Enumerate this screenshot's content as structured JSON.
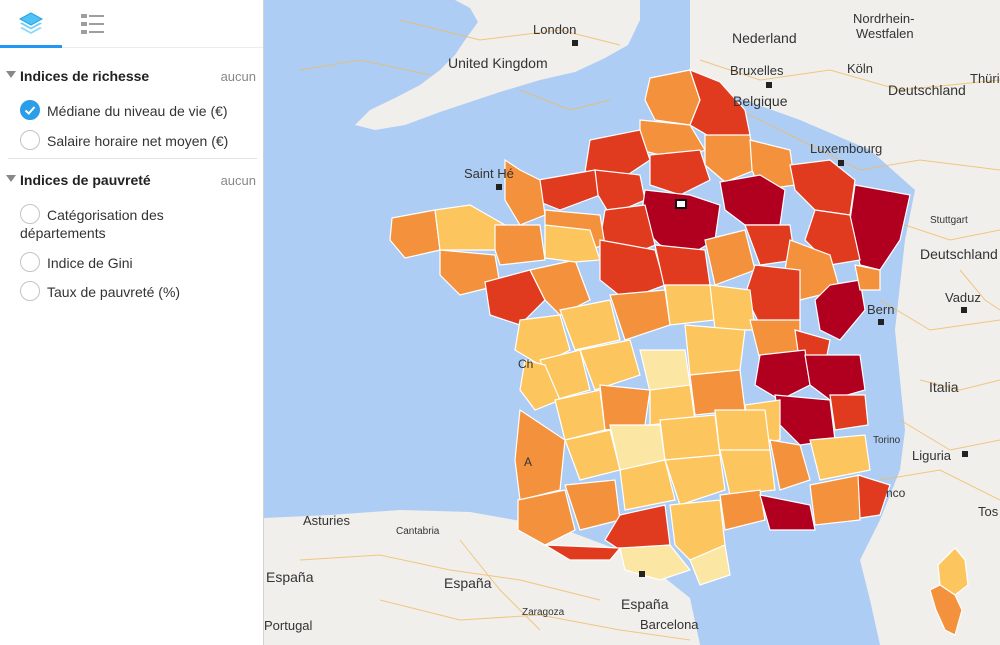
{
  "sidebar": {
    "tabs": [
      {
        "name": "layers",
        "icon": "layers-icon",
        "active": true
      },
      {
        "name": "legend",
        "icon": "legend-list-icon",
        "active": false
      }
    ],
    "sections": [
      {
        "title": "Indices de richesse",
        "none_label": "aucun",
        "items": [
          {
            "label": "Médiane du niveau de vie (€)",
            "checked": true
          },
          {
            "label": "Salaire horaire net moyen (€)",
            "checked": false
          }
        ]
      },
      {
        "title": "Indices de pauvreté",
        "none_label": "aucun",
        "items": [
          {
            "label": "Catégorisation des départements",
            "checked": false
          },
          {
            "label": "Indice de Gini",
            "checked": false
          },
          {
            "label": "Taux de pauvreté (%)",
            "checked": false
          }
        ]
      }
    ]
  },
  "map": {
    "colors": {
      "sea": "#aecdf4",
      "land": "#f1efec",
      "roads": "#f2b85a",
      "level1": "#fbe6a4",
      "level2": "#fcc55e",
      "level3": "#f4913c",
      "level4": "#e03a1f",
      "level5": "#b1001f"
    },
    "labels": [
      "London",
      "Nederland",
      "Nordrhein-",
      "Westfalen",
      "United Kingdom",
      "Bruxelles",
      "Köln",
      "Belgique",
      "Deutschland",
      "Thüri",
      "Luxembourg",
      "Saint Hé",
      "Stuttgart",
      "Deutschland",
      "Bern",
      "Vaduz",
      "Italia",
      "Torino",
      "Liguria",
      "Asturies",
      "Cantabria",
      "España",
      "España",
      "España",
      "Zaragoza",
      "Barcelona",
      "Portugal",
      "Ch",
      "A",
      "Tos",
      "nco"
    ]
  }
}
